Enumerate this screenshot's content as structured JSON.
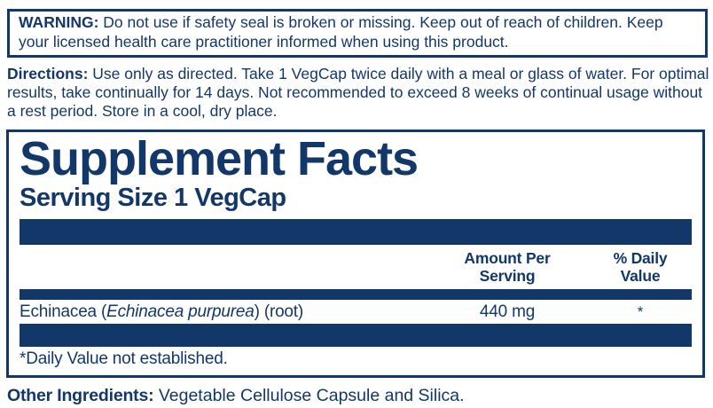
{
  "colors": {
    "navy": "#12386a",
    "background": "#ffffff"
  },
  "warning": {
    "label": "WARNING:",
    "text": "Do not use if safety seal is broken or missing. Keep out of reach of children. Keep your licensed health care practitioner informed when using this product."
  },
  "directions": {
    "label": "Directions:",
    "text": "Use only as directed. Take 1 VegCap twice daily with a meal or glass of water. For optimal results, take continually for 14 days. Not recommended to exceed 8 weeks of continual usage without a rest period. Store in a cool, dry place."
  },
  "supplement_facts": {
    "title": "Supplement Facts",
    "serving_size": "Serving Size 1 VegCap",
    "columns": {
      "amount": "Amount Per\nServing",
      "daily_value": "% Daily\nValue"
    },
    "rows": [
      {
        "name_prefix": "Echinacea (",
        "name_italic": "Echinacea purpurea",
        "name_suffix": ") (root)",
        "amount": "440 mg",
        "daily_value": "*"
      }
    ],
    "footnote": "*Daily Value not established."
  },
  "other_ingredients": {
    "label": "Other Ingredients:",
    "text": "Vegetable Cellulose Capsule and Silica."
  }
}
